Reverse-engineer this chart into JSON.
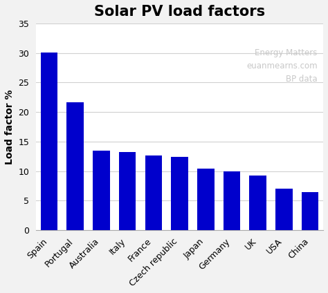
{
  "title": "Solar PV load factors",
  "ylabel": "Load factor %",
  "categories": [
    "Spain",
    "Portugal",
    "Australia",
    "Italy",
    "France",
    "Czech republic",
    "Japan",
    "Germany",
    "UK",
    "USA",
    "China"
  ],
  "values": [
    30.1,
    21.7,
    13.5,
    13.2,
    12.7,
    12.4,
    10.4,
    10.0,
    9.3,
    7.0,
    6.4
  ],
  "bar_color": "#0000CC",
  "background_color": "#f2f2f2",
  "plot_area_color": "#ffffff",
  "ylim": [
    0,
    35
  ],
  "yticks": [
    0,
    5,
    10,
    15,
    20,
    25,
    30,
    35
  ],
  "watermark_lines": [
    "Energy Matters",
    "euanmearns.com",
    "BP data"
  ],
  "watermark_color": "#c8c8c8",
  "title_fontsize": 15,
  "ylabel_fontsize": 10,
  "tick_fontsize": 9,
  "watermark_fontsize": 8.5,
  "grid_color": "#d0d0d0"
}
